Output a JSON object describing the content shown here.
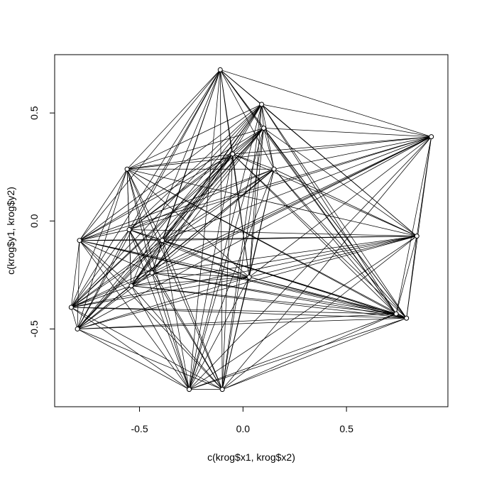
{
  "chart_data": {
    "type": "scatter",
    "xlabel": "c(krog$x1, krog$x2)",
    "ylabel": "c(krog$y1, krog$y2)",
    "xlim": [
      -0.91,
      0.99
    ],
    "ylim": [
      -0.86,
      0.77
    ],
    "xticks": [
      -0.5,
      0.0,
      0.5
    ],
    "xtick_labels": [
      "-0.5",
      "0.0",
      "0.5"
    ],
    "yticks": [
      -0.5,
      0.0,
      0.5
    ],
    "ytick_labels": [
      "-0.5",
      "0.0",
      "0.5"
    ],
    "grid": false,
    "points": [
      {
        "x": -0.11,
        "y": 0.7
      },
      {
        "x": 0.09,
        "y": 0.54
      },
      {
        "x": 0.1,
        "y": 0.43
      },
      {
        "x": 0.91,
        "y": 0.39
      },
      {
        "x": -0.05,
        "y": 0.31
      },
      {
        "x": -0.56,
        "y": 0.24
      },
      {
        "x": 0.15,
        "y": 0.24
      },
      {
        "x": -0.79,
        "y": -0.09
      },
      {
        "x": -0.55,
        "y": -0.04
      },
      {
        "x": -0.39,
        "y": -0.09
      },
      {
        "x": 0.84,
        "y": -0.07
      },
      {
        "x": 0.03,
        "y": -0.26
      },
      {
        "x": -0.44,
        "y": -0.24
      },
      {
        "x": -0.54,
        "y": -0.3
      },
      {
        "x": -0.83,
        "y": -0.4
      },
      {
        "x": 0.74,
        "y": -0.43
      },
      {
        "x": 0.79,
        "y": -0.45
      },
      {
        "x": -0.8,
        "y": -0.5
      },
      {
        "x": -0.26,
        "y": -0.78
      },
      {
        "x": -0.1,
        "y": -0.78
      }
    ],
    "edges": "complete-graph"
  }
}
